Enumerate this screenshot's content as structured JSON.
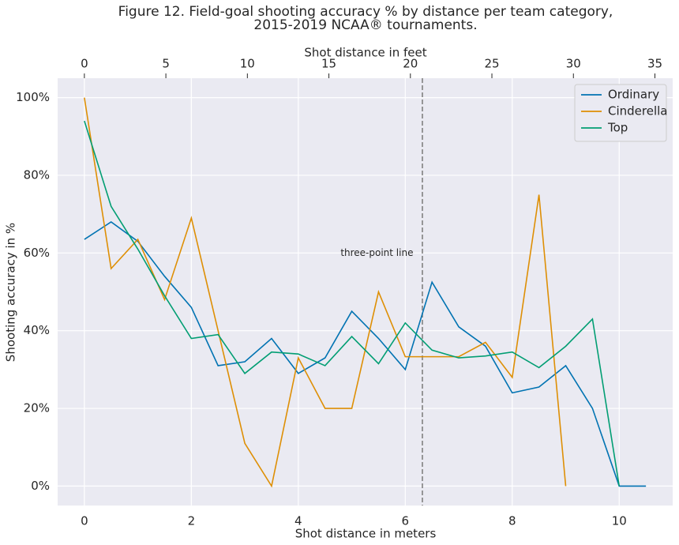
{
  "chart_data": {
    "type": "line",
    "title": [
      "Figure 12. Field-goal shooting accuracy % by distance per team category,",
      "2015-2019 NCAA® tournaments."
    ],
    "xlabel": "Shot distance in meters",
    "x2label": "Shot distance in feet",
    "ylabel": "Shooting accuracy in %",
    "x": [
      0,
      0.5,
      1,
      1.5,
      2,
      2.5,
      3,
      3.5,
      4,
      4.5,
      5,
      5.5,
      6,
      6.5,
      7,
      7.5,
      8,
      8.5,
      9,
      9.5,
      10,
      10.5
    ],
    "series": [
      {
        "name": "Ordinary",
        "color": "#0173b2",
        "values": [
          63.5,
          68,
          63,
          54,
          46,
          31,
          32,
          38,
          29,
          33,
          45,
          38,
          30,
          52.5,
          41,
          36,
          24,
          25.5,
          31,
          20,
          0,
          0
        ]
      },
      {
        "name": "Cinderella",
        "color": "#de8f05",
        "values": [
          100,
          56,
          63.5,
          48,
          69,
          40,
          11,
          0,
          33,
          20,
          20,
          50,
          33.3,
          33.3,
          33.3,
          37,
          28,
          75,
          0,
          null,
          null,
          null
        ]
      },
      {
        "name": "Top",
        "color": "#029e73",
        "values": [
          94,
          72,
          61,
          49,
          38,
          39,
          29,
          34.5,
          34,
          31,
          38.5,
          31.5,
          42,
          35,
          33,
          33.5,
          34.5,
          30.5,
          36,
          43,
          0,
          null
        ]
      }
    ],
    "xlim": [
      -0.5,
      11
    ],
    "xticks": [
      0,
      2,
      4,
      6,
      8,
      10
    ],
    "x2lim": [
      -1.64,
      36.09
    ],
    "x2ticks": [
      0,
      5,
      10,
      15,
      20,
      25,
      30,
      35
    ],
    "ylim": [
      -5,
      105
    ],
    "yticks": [
      {
        "value": 0,
        "label": "0%"
      },
      {
        "value": 20,
        "label": "20%"
      },
      {
        "value": 40,
        "label": "40%"
      },
      {
        "value": 60,
        "label": "60%"
      },
      {
        "value": 80,
        "label": "80%"
      },
      {
        "value": 100,
        "label": "100%"
      }
    ],
    "vline": {
      "x": 6.32,
      "color": "#808080"
    },
    "annotation": {
      "text": "three-point line",
      "x": 5.47,
      "y": 60
    },
    "grid": true,
    "legend": "upper right",
    "background": "#eaeaf2"
  }
}
